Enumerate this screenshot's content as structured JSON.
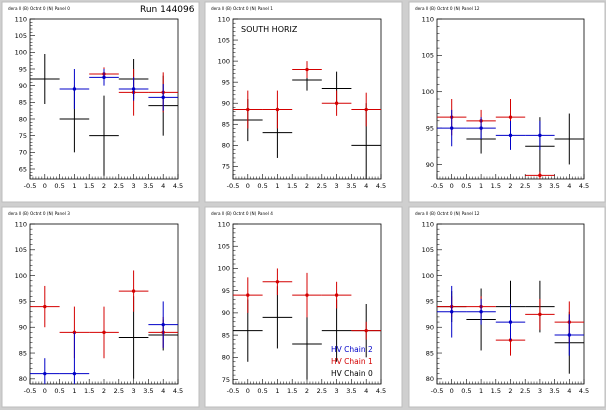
{
  "run_label": "Run 144096",
  "colors": {
    "chain0": "#000000",
    "chain1": "#d40000",
    "chain2": "#0000c8",
    "pad": "#ffffff",
    "frame": "#000000",
    "canvas": "#cfcfcf"
  },
  "chart_data": [
    {
      "type": "scatter",
      "title": "dera ll (B) Octnt 0 (N) Panel 0",
      "overlay": "",
      "xlim": [
        -0.5,
        4.5
      ],
      "ylim": [
        62,
        110
      ],
      "xticks": [
        "-0.5",
        "0",
        "0.5",
        "1",
        "1.5",
        "2",
        "2.5",
        "3",
        "3.5",
        "4",
        "4.5"
      ],
      "yticks": [
        "65",
        "70",
        "75",
        "80",
        "85",
        "90",
        "95",
        "100",
        "105",
        "110"
      ],
      "series": [
        {
          "color": "chain0",
          "points": [
            {
              "x": 0,
              "y": 92,
              "xe": 0.5,
              "ye": 7.5
            },
            {
              "x": 1,
              "y": 80,
              "xe": 0.5,
              "ye": 10
            },
            {
              "x": 2,
              "y": 75,
              "xe": 0.5,
              "ye": 12
            },
            {
              "x": 3,
              "y": 92,
              "xe": 0.5,
              "ye": 6
            },
            {
              "x": 4,
              "y": 84,
              "xe": 0.5,
              "ye": 9
            }
          ]
        },
        {
          "color": "chain1",
          "points": [
            {
              "x": 2,
              "y": 93.5,
              "xe": 0.5,
              "ye": 2
            },
            {
              "x": 3,
              "y": 88,
              "xe": 0.5,
              "ye": 7
            },
            {
              "x": 4,
              "y": 88,
              "xe": 0.5,
              "ye": 6
            }
          ]
        },
        {
          "color": "chain2",
          "points": [
            {
              "x": 1,
              "y": 89,
              "xe": 0.5,
              "ye": 6
            },
            {
              "x": 2,
              "y": 92.5,
              "xe": 0.5,
              "ye": 2.5
            },
            {
              "x": 3,
              "y": 89,
              "xe": 0.5,
              "ye": 3.5
            },
            {
              "x": 4,
              "y": 86.5,
              "xe": 0.5,
              "ye": 4
            }
          ]
        }
      ]
    },
    {
      "type": "scatter",
      "title": "dera ll (B) Octnt 0 (N) Panel 1",
      "overlay": "SOUTH HORIZ",
      "xlim": [
        -0.5,
        4.5
      ],
      "ylim": [
        72,
        110
      ],
      "xticks": [
        "-0.5",
        "0",
        "0.5",
        "1",
        "1.5",
        "2",
        "2.5",
        "3",
        "3.5",
        "4",
        "4.5"
      ],
      "yticks": [
        "75",
        "80",
        "85",
        "90",
        "95",
        "100",
        "105",
        "110"
      ],
      "series": [
        {
          "color": "chain0",
          "points": [
            {
              "x": 0,
              "y": 86,
              "xe": 0.5,
              "ye": 5
            },
            {
              "x": 1,
              "y": 83,
              "xe": 0.5,
              "ye": 6
            },
            {
              "x": 2,
              "y": 95.5,
              "xe": 0.5,
              "ye": 2.5
            },
            {
              "x": 3,
              "y": 93.5,
              "xe": 0.5,
              "ye": 4
            },
            {
              "x": 4,
              "y": 80,
              "xe": 0.5,
              "ye": 10
            }
          ]
        },
        {
          "color": "chain1",
          "points": [
            {
              "x": 0,
              "y": 88.5,
              "xe": 0.5,
              "ye": 4.5
            },
            {
              "x": 1,
              "y": 88.5,
              "xe": 0.5,
              "ye": 4.5
            },
            {
              "x": 2,
              "y": 98,
              "xe": 0.5,
              "ye": 2
            },
            {
              "x": 3,
              "y": 90,
              "xe": 0.5,
              "ye": 3
            },
            {
              "x": 4,
              "y": 88.5,
              "xe": 0.5,
              "ye": 4
            }
          ]
        }
      ]
    },
    {
      "type": "scatter",
      "title": "dera ll (B) Octnt 0 (N) Panel 12",
      "overlay": "",
      "xlim": [
        -0.5,
        4.5
      ],
      "ylim": [
        88,
        110
      ],
      "xticks": [
        "-0.5",
        "0",
        "0.5",
        "1",
        "1.5",
        "2",
        "2.5",
        "3",
        "3.5",
        "4",
        "4.5"
      ],
      "yticks": [
        "90",
        "95",
        "100",
        "105",
        "110"
      ],
      "series": [
        {
          "color": "chain0",
          "points": [
            {
              "x": 1,
              "y": 93.5,
              "xe": 0.5,
              "ye": 2
            },
            {
              "x": 3,
              "y": 92.5,
              "xe": 0.5,
              "ye": 4
            },
            {
              "x": 4,
              "y": 93.5,
              "xe": 0.5,
              "ye": 3.5
            }
          ]
        },
        {
          "color": "chain1",
          "points": [
            {
              "x": 0,
              "y": 96.5,
              "xe": 0.5,
              "ye": 2.5
            },
            {
              "x": 1,
              "y": 96,
              "xe": 0.5,
              "ye": 1.5
            },
            {
              "x": 2,
              "y": 96.5,
              "xe": 0.5,
              "ye": 2.5
            },
            {
              "x": 3,
              "y": 88.5,
              "xe": 0.5,
              "ye": 0.5
            }
          ]
        },
        {
          "color": "chain2",
          "points": [
            {
              "x": 0,
              "y": 95,
              "xe": 0.5,
              "ye": 2.5
            },
            {
              "x": 1,
              "y": 95,
              "xe": 0.5,
              "ye": 1.5
            },
            {
              "x": 2,
              "y": 94,
              "xe": 0.5,
              "ye": 2
            },
            {
              "x": 3,
              "y": 94,
              "xe": 0.5,
              "ye": 2
            }
          ]
        }
      ]
    },
    {
      "type": "scatter",
      "title": "dera ll (B) Octnt 0 (N) Panel 3",
      "overlay": "",
      "xlim": [
        -0.5,
        4.5
      ],
      "ylim": [
        79,
        110
      ],
      "xticks": [
        "-0.5",
        "0",
        "0.5",
        "1",
        "1.5",
        "2",
        "2.5",
        "3",
        "3.5",
        "4",
        "4.5"
      ],
      "yticks": [
        "80",
        "85",
        "90",
        "95",
        "100",
        "105",
        "110"
      ],
      "series": [
        {
          "color": "chain0",
          "points": [
            {
              "x": 3,
              "y": 88,
              "xe": 0.5,
              "ye": 8
            },
            {
              "x": 4,
              "y": 88.5,
              "xe": 0.5,
              "ye": 3
            }
          ]
        },
        {
          "color": "chain1",
          "points": [
            {
              "x": 0,
              "y": 94,
              "xe": 0.5,
              "ye": 4
            },
            {
              "x": 1,
              "y": 89,
              "xe": 0.5,
              "ye": 5
            },
            {
              "x": 2,
              "y": 89,
              "xe": 0.5,
              "ye": 5
            },
            {
              "x": 3,
              "y": 97,
              "xe": 0.5,
              "ye": 4
            },
            {
              "x": 4,
              "y": 89,
              "xe": 0.5,
              "ye": 3
            }
          ]
        },
        {
          "color": "chain2",
          "points": [
            {
              "x": 0,
              "y": 81,
              "xe": 0.5,
              "ye": 3
            },
            {
              "x": 1,
              "y": 81,
              "xe": 0.5,
              "ye": 8
            },
            {
              "x": 4,
              "y": 90.5,
              "xe": 0.5,
              "ye": 4.5
            }
          ]
        }
      ]
    },
    {
      "type": "scatter",
      "title": "dera ll (B) Octnt 0 (N) Panel 4",
      "overlay": "",
      "xlim": [
        -0.5,
        4.5
      ],
      "ylim": [
        74,
        110
      ],
      "xticks": [
        "-0.5",
        "0",
        "0.5",
        "1",
        "1.5",
        "2",
        "2.5",
        "3",
        "3.5",
        "4",
        "4.5"
      ],
      "yticks": [
        "75",
        "80",
        "85",
        "90",
        "95",
        "100",
        "105",
        "110"
      ],
      "legend": [
        {
          "label": "HV Chain 2",
          "color": "chain2"
        },
        {
          "label": "HV Chain 1",
          "color": "chain1"
        },
        {
          "label": "HV Chain 0",
          "color": "chain0"
        }
      ],
      "series": [
        {
          "color": "chain0",
          "points": [
            {
              "x": 0,
              "y": 86,
              "xe": 0.5,
              "ye": 7
            },
            {
              "x": 1,
              "y": 89,
              "xe": 0.5,
              "ye": 7
            },
            {
              "x": 2,
              "y": 83,
              "xe": 0.5,
              "ye": 8
            },
            {
              "x": 3,
              "y": 86,
              "xe": 0.5,
              "ye": 7
            },
            {
              "x": 4,
              "y": 86,
              "xe": 0.5,
              "ye": 6
            }
          ]
        },
        {
          "color": "chain1",
          "points": [
            {
              "x": 0,
              "y": 94,
              "xe": 0.5,
              "ye": 4
            },
            {
              "x": 1,
              "y": 97,
              "xe": 0.5,
              "ye": 3
            },
            {
              "x": 2,
              "y": 94,
              "xe": 0.5,
              "ye": 5
            },
            {
              "x": 3,
              "y": 94,
              "xe": 0.5,
              "ye": 3
            },
            {
              "x": 4,
              "y": 86,
              "xe": 0.5,
              "ye": 2
            }
          ]
        }
      ]
    },
    {
      "type": "scatter",
      "title": "dera ll (B) Octnt 0 (N) Panel 12",
      "overlay": "",
      "xlim": [
        -0.5,
        4.5
      ],
      "ylim": [
        79,
        110
      ],
      "xticks": [
        "-0.5",
        "0",
        "0.5",
        "1",
        "1.5",
        "2",
        "2.5",
        "3",
        "3.5",
        "4",
        "4.5"
      ],
      "yticks": [
        "80",
        "85",
        "90",
        "95",
        "100",
        "105",
        "110"
      ],
      "series": [
        {
          "color": "chain0",
          "points": [
            {
              "x": 0,
              "y": 94,
              "xe": 0.5,
              "ye": 3
            },
            {
              "x": 1,
              "y": 91.5,
              "xe": 0.5,
              "ye": 6
            },
            {
              "x": 2,
              "y": 94,
              "xe": 0.5,
              "ye": 5
            },
            {
              "x": 3,
              "y": 94,
              "xe": 0.5,
              "ye": 5
            },
            {
              "x": 4,
              "y": 87,
              "xe": 0.5,
              "ye": 6
            }
          ]
        },
        {
          "color": "chain1",
          "points": [
            {
              "x": 0,
              "y": 94,
              "xe": 0.5,
              "ye": 2
            },
            {
              "x": 1,
              "y": 94,
              "xe": 0.5,
              "ye": 2
            },
            {
              "x": 2,
              "y": 87.5,
              "xe": 0.5,
              "ye": 3
            },
            {
              "x": 3,
              "y": 92.5,
              "xe": 0.5,
              "ye": 3
            },
            {
              "x": 4,
              "y": 91,
              "xe": 0.5,
              "ye": 4
            }
          ]
        },
        {
          "color": "chain2",
          "points": [
            {
              "x": 0,
              "y": 93,
              "xe": 0.5,
              "ye": 5
            },
            {
              "x": 1,
              "y": 93,
              "xe": 0.5,
              "ye": 2.5
            },
            {
              "x": 2,
              "y": 91,
              "xe": 0.5,
              "ye": 3.5
            },
            {
              "x": 4,
              "y": 88.5,
              "xe": 0.5,
              "ye": 4
            }
          ]
        }
      ]
    }
  ]
}
